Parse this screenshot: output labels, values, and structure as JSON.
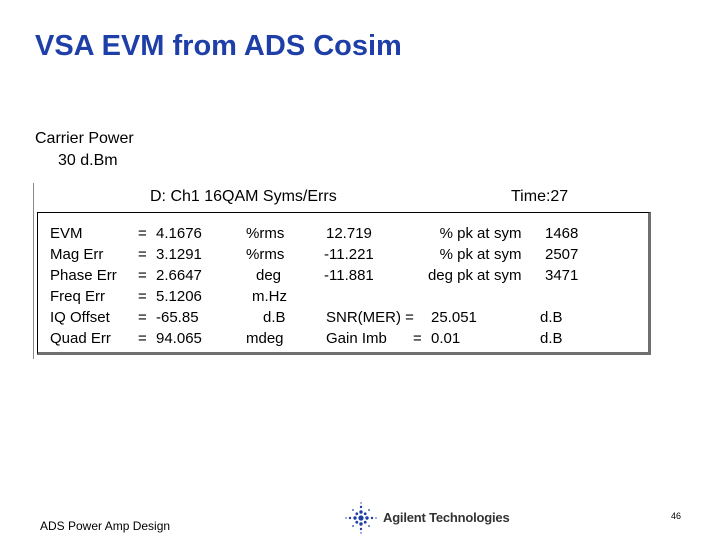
{
  "slide": {
    "title": "VSA EVM from ADS Cosim"
  },
  "carrier": {
    "label": "Carrier Power",
    "value": "30 d.Bm"
  },
  "vsa": {
    "header": "D: Ch1 16QAM Syms/Errs",
    "time": "Time:27",
    "rows": [
      {
        "name": "EVM",
        "eq": "=",
        "value": "4.1676",
        "unit": "%rms",
        "pk": "12.719",
        "pkunit": "% pk",
        "at": "at",
        "sym": "sym",
        "symval": "1468"
      },
      {
        "name": "Mag Err",
        "eq": "=",
        "value": "3.1291",
        "unit": "%rms",
        "pk": "-11.221",
        "pkunit": "% pk",
        "at": "at",
        "sym": "sym",
        "symval": "2507"
      },
      {
        "name": "Phase Err",
        "eq": "=",
        "value": "2.6647",
        "unit": "deg",
        "pk": "-11.881",
        "pkunit": "deg pk",
        "at": "at",
        "sym": "sym",
        "symval": "3471"
      },
      {
        "name": "Freq  Err",
        "eq": "=",
        "value": "5.1206",
        "unit": "m.Hz"
      },
      {
        "name": "IQ  Offset",
        "eq": "=",
        "value": "-65.85",
        "unit": "d.B",
        "extra_label": "SNR(MER) =",
        "extra_value": "25.051",
        "extra_unit": "d.B"
      },
      {
        "name": "Quad Err",
        "eq": "=",
        "value": "94.065",
        "unit": "mdeg",
        "extra_label": "Gain  Imb",
        "extra_eq": "=",
        "extra_value": "0.01",
        "extra_unit": "d.B"
      }
    ]
  },
  "footer": {
    "left": "ADS Power Amp Design",
    "logo_text": "Agilent Technologies",
    "logo_icon": "agilent-spark-icon",
    "page": "46"
  },
  "colors": {
    "title": "#1f3fa8",
    "box_shadow": "#6f6f6f"
  }
}
